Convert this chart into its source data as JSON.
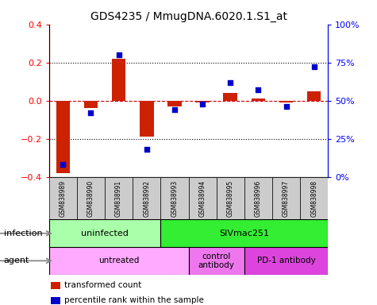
{
  "title": "GDS4235 / MmugDNA.6020.1.S1_at",
  "samples": [
    "GSM838989",
    "GSM838990",
    "GSM838991",
    "GSM838992",
    "GSM838993",
    "GSM838994",
    "GSM838995",
    "GSM838996",
    "GSM838997",
    "GSM838998"
  ],
  "transformed_count": [
    -0.38,
    -0.04,
    0.22,
    -0.19,
    -0.03,
    -0.01,
    0.04,
    0.01,
    -0.01,
    0.05
  ],
  "percentile_rank": [
    8,
    42,
    80,
    18,
    44,
    48,
    62,
    57,
    46,
    72
  ],
  "ylim_left": [
    -0.4,
    0.4
  ],
  "ylim_right": [
    0,
    100
  ],
  "yticks_left": [
    -0.4,
    -0.2,
    0.0,
    0.2,
    0.4
  ],
  "yticks_right": [
    0,
    25,
    50,
    75,
    100
  ],
  "ytick_labels_right": [
    "0%",
    "25%",
    "50%",
    "75%",
    "100%"
  ],
  "bar_color": "#cc2200",
  "dot_color": "#0000cc",
  "infection_groups": [
    {
      "label": "uninfected",
      "start": 0,
      "end": 3,
      "color": "#aaeea a"
    },
    {
      "label": "SIVmac251",
      "start": 4,
      "end": 9,
      "color": "#33dd33"
    }
  ],
  "agent_groups": [
    {
      "label": "untreated",
      "start": 0,
      "end": 4,
      "color": "#eeaaee"
    },
    {
      "label": "control\nantibody",
      "start": 5,
      "end": 6,
      "color": "#dd88dd"
    },
    {
      "label": "PD-1 antibody",
      "start": 7,
      "end": 9,
      "color": "#cc55cc"
    }
  ],
  "legend_items": [
    {
      "label": "transformed count",
      "color": "#cc2200"
    },
    {
      "label": "percentile rank within the sample",
      "color": "#0000cc"
    }
  ],
  "zero_line_color": "#cc0000",
  "grid_color": "#000000",
  "bg_color": "#ffffff",
  "infection_label": "infection",
  "agent_label": "agent",
  "infection_colors": [
    "#aaffaa",
    "#33ee33"
  ],
  "agent_colors": [
    "#ffaaff",
    "#ee88ee",
    "#dd55dd"
  ]
}
